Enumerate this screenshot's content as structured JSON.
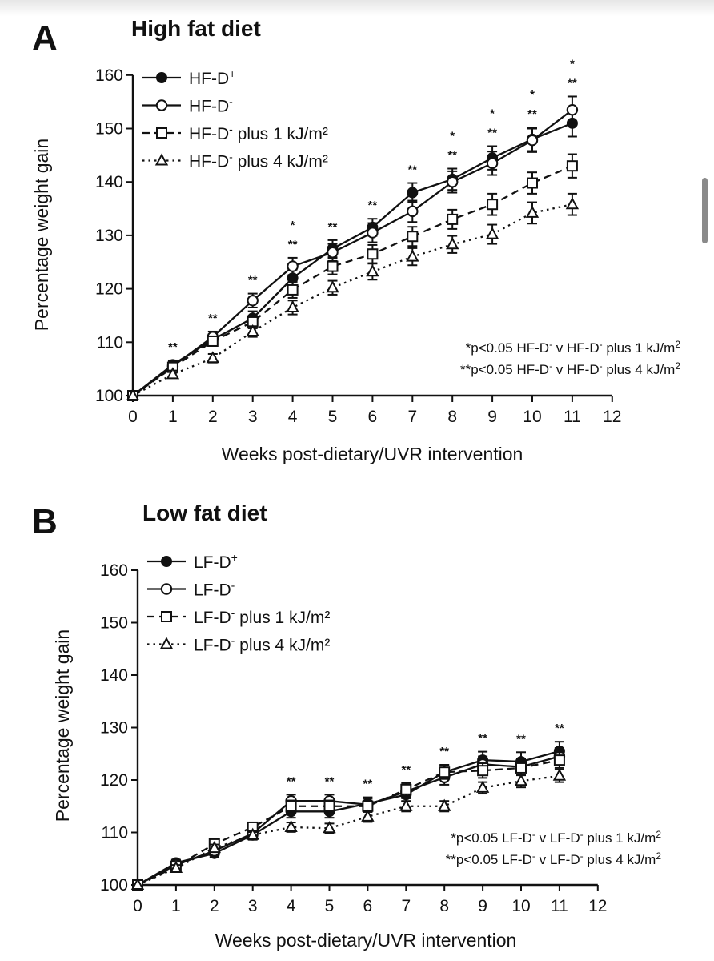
{
  "chart_data": [
    {
      "type": "line",
      "panel_letter": "A",
      "title": "High fat diet",
      "xlabel": "Weeks post-dietary/UVR intervention",
      "ylabel": "Percentage weight gain",
      "xlim": [
        0,
        12
      ],
      "ylim": [
        100,
        160
      ],
      "x_ticks": [
        "0",
        "1",
        "2",
        "3",
        "4",
        "5",
        "6",
        "7",
        "8",
        "9",
        "10",
        "11",
        "12"
      ],
      "y_ticks": [
        "100",
        "110",
        "120",
        "130",
        "140",
        "150",
        "160"
      ],
      "x": [
        0,
        1,
        2,
        3,
        4,
        5,
        6,
        7,
        8,
        9,
        10,
        11
      ],
      "series": [
        {
          "name": "HF-D",
          "sup": "+",
          "suffix": "",
          "marker": "filled-circle",
          "dash": "solid",
          "values": [
            100,
            105.8,
            110.5,
            114.5,
            122,
            127.5,
            131.5,
            138,
            140.5,
            144.5,
            148,
            151
          ],
          "err": [
            0,
            0.8,
            1,
            1.3,
            1.6,
            1.6,
            1.6,
            1.8,
            2,
            2.2,
            2.2,
            2.5
          ]
        },
        {
          "name": "HF-D",
          "sup": "-",
          "suffix": "",
          "marker": "open-circle",
          "dash": "solid",
          "values": [
            100,
            105.5,
            111,
            117.8,
            124.2,
            126.8,
            130.5,
            134.5,
            140,
            143.5,
            147.8,
            153.5
          ],
          "err": [
            0,
            0.8,
            1,
            1.3,
            1.6,
            1.6,
            1.8,
            2,
            2,
            2.2,
            2.2,
            2.5
          ]
        },
        {
          "name": "HF-D",
          "sup": "-",
          "suffix": " plus 1 kJ/m²",
          "marker": "open-square",
          "dash": "dashed",
          "values": [
            100,
            105.3,
            110.2,
            113.8,
            119.8,
            124.2,
            126.5,
            129.8,
            133,
            135.8,
            139.8,
            143
          ],
          "err": [
            0,
            0.7,
            0.9,
            1.2,
            1.5,
            1.5,
            1.7,
            1.8,
            1.8,
            2,
            2,
            2.2
          ]
        },
        {
          "name": "HF-D",
          "sup": "-",
          "suffix": " plus 4 kJ/m²",
          "marker": "open-triangle",
          "dash": "dotted",
          "values": [
            100,
            104,
            107,
            112,
            116.5,
            120.2,
            123.2,
            126,
            128.3,
            130.2,
            134.2,
            135.8
          ],
          "err": [
            0,
            0.7,
            0.8,
            1,
            1.3,
            1.3,
            1.5,
            1.6,
            1.6,
            1.8,
            2,
            2
          ]
        }
      ],
      "significance": [
        {
          "x": 1,
          "marks": [
            "**"
          ]
        },
        {
          "x": 2,
          "marks": [
            "**"
          ]
        },
        {
          "x": 3,
          "marks": [
            "**"
          ]
        },
        {
          "x": 4,
          "marks": [
            "*",
            "**"
          ]
        },
        {
          "x": 5,
          "marks": [
            "**"
          ]
        },
        {
          "x": 6,
          "marks": [
            "**"
          ]
        },
        {
          "x": 7,
          "marks": [
            "**"
          ]
        },
        {
          "x": 8,
          "marks": [
            "*",
            "**"
          ]
        },
        {
          "x": 9,
          "marks": [
            "*",
            "**"
          ]
        },
        {
          "x": 10,
          "marks": [
            "*",
            "**"
          ]
        },
        {
          "x": 11,
          "marks": [
            "*",
            "**"
          ]
        }
      ],
      "notes": [
        {
          "prefix": "*p<0.05 HF-D",
          "mid": " v HF-D",
          "end": " plus 1 kJ/m"
        },
        {
          "prefix": "**p<0.05 HF-D",
          "mid": " v HF-D",
          "end": " plus 4 kJ/m"
        }
      ],
      "legend_position": "top-left"
    },
    {
      "type": "line",
      "panel_letter": "B",
      "title": "Low fat diet",
      "xlabel": "Weeks post-dietary/UVR intervention",
      "ylabel": "Percentage weight gain",
      "xlim": [
        0,
        12
      ],
      "ylim": [
        100,
        160
      ],
      "x_ticks": [
        "0",
        "1",
        "2",
        "3",
        "4",
        "5",
        "6",
        "7",
        "8",
        "9",
        "10",
        "11",
        "12"
      ],
      "y_ticks": [
        "100",
        "110",
        "120",
        "130",
        "140",
        "150",
        "160"
      ],
      "x": [
        0,
        1,
        2,
        3,
        4,
        5,
        6,
        7,
        8,
        9,
        10,
        11
      ],
      "series": [
        {
          "name": "LF-D",
          "sup": "+",
          "suffix": "",
          "marker": "filled-circle",
          "dash": "solid",
          "values": [
            100,
            104.2,
            106,
            109.5,
            114,
            114,
            115.5,
            117.2,
            121.5,
            123.8,
            123.5,
            125.5
          ],
          "err": [
            0,
            0.6,
            0.8,
            0.9,
            1.2,
            1.2,
            1.2,
            1.3,
            1.4,
            1.6,
            1.8,
            1.8
          ]
        },
        {
          "name": "LF-D",
          "sup": "-",
          "suffix": "",
          "marker": "open-circle",
          "dash": "solid",
          "values": [
            100,
            103.8,
            106.5,
            109.8,
            116,
            116,
            115.3,
            117.8,
            120.5,
            123,
            122.5,
            124.5
          ],
          "err": [
            0,
            0.6,
            0.8,
            0.9,
            1.2,
            1.2,
            1.2,
            1.3,
            1.4,
            1.5,
            1.5,
            1.6
          ]
        },
        {
          "name": "LF-D",
          "sup": "-",
          "suffix": " plus 1 kJ/m²",
          "marker": "open-square",
          "dash": "dashed",
          "values": [
            100,
            103.5,
            107.8,
            111,
            115,
            115,
            115,
            118.2,
            121.5,
            121.8,
            122.3,
            123.8
          ],
          "err": [
            0,
            0.6,
            0.8,
            0.9,
            1.1,
            1.1,
            1.1,
            1.2,
            1.3,
            1.4,
            1.4,
            1.5
          ]
        },
        {
          "name": "LF-D",
          "sup": "-",
          "suffix": " plus 4 kJ/m²",
          "marker": "open-triangle",
          "dash": "dotted",
          "values": [
            100,
            103.2,
            107,
            109.5,
            111,
            110.8,
            113,
            115,
            115,
            118.5,
            119.8,
            120.8
          ],
          "err": [
            0,
            0.6,
            0.7,
            0.8,
            0.9,
            0.9,
            1,
            1,
            1,
            1.1,
            1.2,
            1.2
          ]
        }
      ],
      "significance": [
        {
          "x": 4,
          "marks": [
            "**"
          ]
        },
        {
          "x": 5,
          "marks": [
            "**"
          ]
        },
        {
          "x": 6,
          "marks": [
            "**"
          ]
        },
        {
          "x": 7,
          "marks": [
            "**"
          ]
        },
        {
          "x": 8,
          "marks": [
            "**"
          ]
        },
        {
          "x": 9,
          "marks": [
            "**"
          ]
        },
        {
          "x": 10,
          "marks": [
            "**"
          ]
        },
        {
          "x": 11,
          "marks": [
            "**"
          ]
        }
      ],
      "notes": [
        {
          "prefix": "*p<0.05 LF-D",
          "mid": " v LF-D",
          "end": " plus 1 kJ/m"
        },
        {
          "prefix": "**p<0.05 LF-D",
          "mid": " v LF-D",
          "end": " plus 4 kJ/m"
        }
      ],
      "legend_position": "top-left"
    }
  ]
}
